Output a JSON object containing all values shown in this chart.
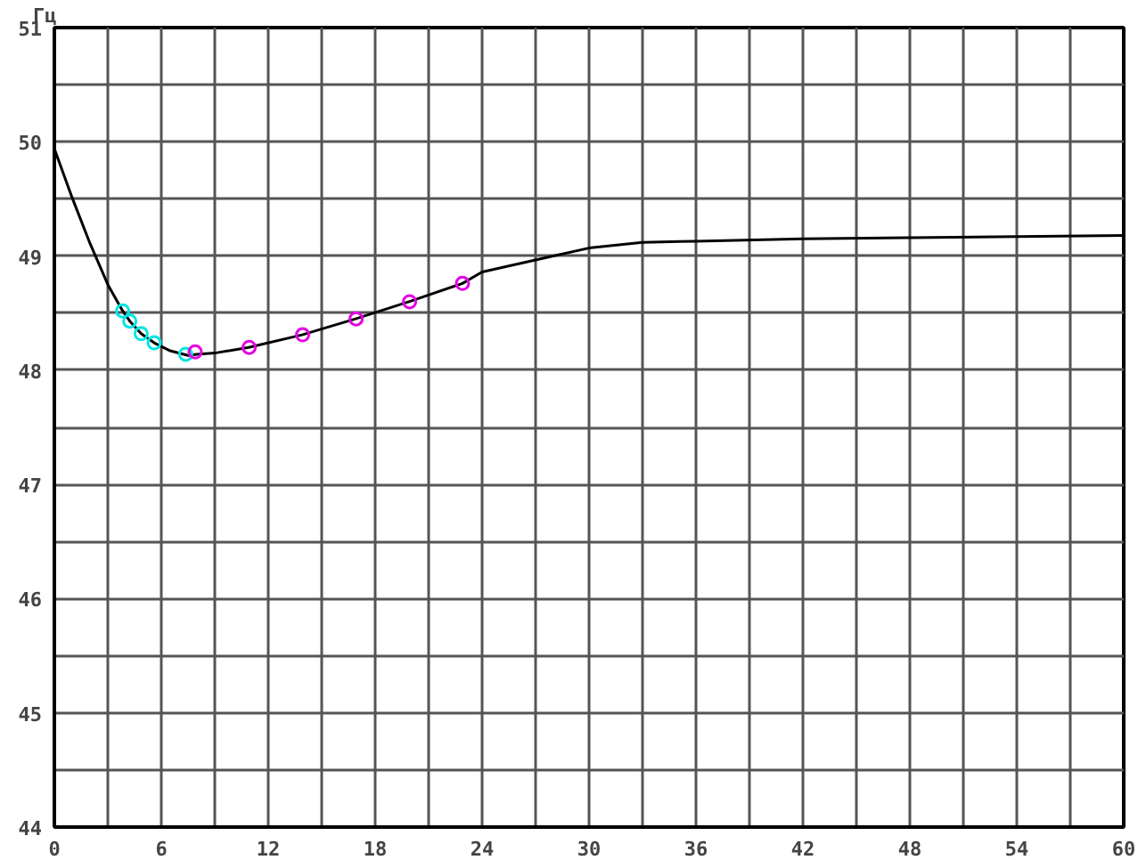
{
  "chart_data": {
    "type": "line",
    "ylabel": "Гц",
    "xlim": [
      0,
      60
    ],
    "ylim": [
      44,
      51
    ],
    "xticks": [
      0,
      {
        "value": 3,
        "label": null
      },
      6,
      {
        "value": 9,
        "label": null
      },
      12,
      {
        "value": 15,
        "label": null
      },
      18,
      {
        "value": 21,
        "label": null
      },
      24,
      {
        "value": 27,
        "label": null
      },
      30,
      {
        "value": 33,
        "label": null
      },
      36,
      {
        "value": 39,
        "label": null
      },
      42,
      {
        "value": 45,
        "label": null
      },
      48,
      {
        "value": 51,
        "label": null
      },
      54,
      {
        "value": 57,
        "label": null
      },
      60
    ],
    "yticks": [
      44,
      {
        "value": 44.5,
        "label": null
      },
      45,
      {
        "value": 45.5,
        "label": null
      },
      46,
      {
        "value": 46.5,
        "label": null
      },
      47,
      {
        "value": 47.5,
        "label": null
      },
      48,
      {
        "value": 48.5,
        "label": null
      },
      49,
      {
        "value": 49.5,
        "label": null
      },
      50,
      {
        "value": 50.5,
        "label": null
      },
      51
    ],
    "grid": true,
    "series": [
      {
        "color": "#000000",
        "marker": "none",
        "x": [
          0,
          1,
          2,
          3,
          3.83,
          4.23,
          4.87,
          5.6,
          6.5,
          7.5,
          8,
          9,
          10.9,
          13.9,
          16.9,
          19.9,
          22.9,
          24,
          26,
          28,
          30,
          33,
          36,
          42,
          48,
          54,
          60
        ],
        "values": [
          49.94,
          49.51,
          49.11,
          48.75,
          48.52,
          48.43,
          48.32,
          48.24,
          48.17,
          48.13,
          48.14,
          48.15,
          48.2,
          48.31,
          48.45,
          48.6,
          48.76,
          48.86,
          48.93,
          49.0,
          49.07,
          49.12,
          49.13,
          49.15,
          49.16,
          49.17,
          49.18
        ]
      },
      {
        "type": "scatter",
        "color": "#00e5e5",
        "marker": "circle",
        "x": [
          3.83,
          4.23,
          4.87,
          5.6,
          7.37
        ],
        "values": [
          48.52,
          48.43,
          48.32,
          48.24,
          48.14
        ]
      },
      {
        "type": "scatter",
        "color": "#e500e5",
        "marker": "circle",
        "x": [
          7.9,
          10.93,
          13.93,
          16.93,
          19.93,
          22.9
        ],
        "values": [
          48.16,
          48.2,
          48.31,
          48.45,
          48.6,
          48.76
        ]
      }
    ]
  }
}
